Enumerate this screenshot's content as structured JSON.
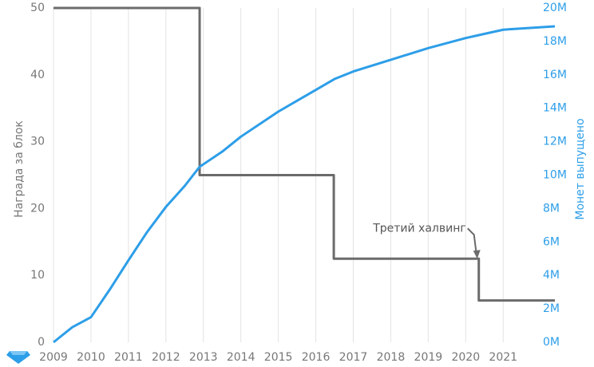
{
  "chart_data": {
    "type": "line",
    "ylabel": "Награда за блок",
    "y2label": "Монет выпущено",
    "xlim": [
      2009,
      2022.38
    ],
    "xticks": [
      2009,
      2010,
      2011,
      2012,
      2013,
      2014,
      2015,
      2016,
      2017,
      2018,
      2019,
      2020,
      2021
    ],
    "ylim": [
      0,
      50
    ],
    "yticks": [
      0,
      10,
      20,
      30,
      40,
      50
    ],
    "y2lim": [
      0,
      20000000
    ],
    "y2ticks": [
      {
        "value": 0,
        "label": "0M"
      },
      {
        "value": 2000000,
        "label": "2M"
      },
      {
        "value": 4000000,
        "label": "4M"
      },
      {
        "value": 6000000,
        "label": "6M"
      },
      {
        "value": 8000000,
        "label": "8M"
      },
      {
        "value": 10000000,
        "label": "10M"
      },
      {
        "value": 12000000,
        "label": "12M"
      },
      {
        "value": 14000000,
        "label": "14M"
      },
      {
        "value": 16000000,
        "label": "16M"
      },
      {
        "value": 18000000,
        "label": "18M"
      },
      {
        "value": 20000000,
        "label": "20M"
      }
    ],
    "grid": "x",
    "series": [
      {
        "name": "Награда за блок",
        "color": "#6b6b6b",
        "x": [
          2009,
          2012.9,
          2012.9,
          2016.48,
          2016.48,
          2020.35,
          2020.35,
          2022.38
        ],
        "values": [
          50,
          50,
          25,
          25,
          12.5,
          12.5,
          6.25,
          6.25
        ]
      },
      {
        "name": "Монет выпущено",
        "color": "#2d9ee8",
        "axis": "y2",
        "x": [
          2009,
          2009.5,
          2010,
          2010.5,
          2011,
          2011.5,
          2012,
          2012.5,
          2012.9,
          2013.5,
          2014,
          2015,
          2016,
          2016.5,
          2017,
          2018,
          2019,
          2020,
          2020.4,
          2021,
          2022.38
        ],
        "values": [
          0,
          900000,
          1500000,
          3150000,
          4900000,
          6600000,
          8100000,
          9350000,
          10500000,
          11400000,
          12300000,
          13800000,
          15100000,
          15750000,
          16200000,
          16900000,
          17600000,
          18200000,
          18400000,
          18700000,
          18900000
        ]
      }
    ],
    "annotations": [
      {
        "text": "Третий халвинг",
        "x": 2020.35,
        "y": 12.5
      }
    ]
  }
}
